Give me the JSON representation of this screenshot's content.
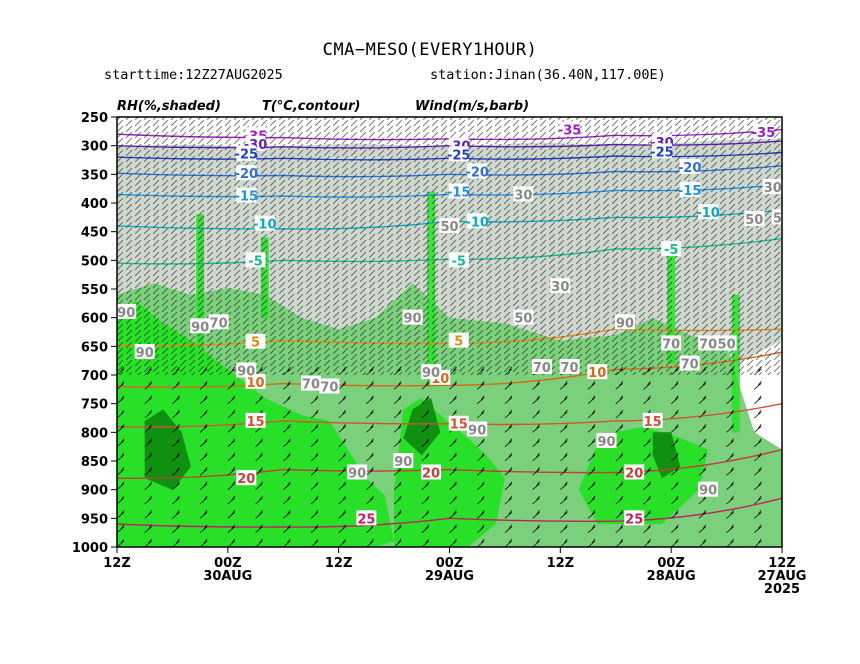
{
  "header": {
    "title": "CMA−MESO(EVERY1HOUR)",
    "starttime": "starttime:12Z27AUG2025",
    "station": "station:Jinan(36.40N,117.00E)"
  },
  "chart_data": {
    "type": "heatmap",
    "panel_labels": [
      "RH(%,shaded)",
      "T(°C,contour)",
      "Wind(m/s,barb)"
    ],
    "y_axis": {
      "ticks": [
        250,
        300,
        350,
        400,
        450,
        500,
        550,
        600,
        650,
        700,
        750,
        800,
        850,
        900,
        950,
        1000
      ],
      "range": [
        250,
        1000
      ],
      "reversed": true,
      "quantity": "pressure (hPa)"
    },
    "x_axis": {
      "direction": "reversed (time increases to the left)",
      "ticks": [
        {
          "hours": 72,
          "label1": "12Z",
          "label2": "",
          "label3": ""
        },
        {
          "hours": 60,
          "label1": "00Z",
          "label2": "30AUG",
          "label3": ""
        },
        {
          "hours": 48,
          "label1": "12Z",
          "label2": "",
          "label3": ""
        },
        {
          "hours": 36,
          "label1": "00Z",
          "label2": "29AUG",
          "label3": ""
        },
        {
          "hours": 24,
          "label1": "12Z",
          "label2": "",
          "label3": ""
        },
        {
          "hours": 12,
          "label1": "00Z",
          "label2": "28AUG",
          "label3": ""
        },
        {
          "hours": 0,
          "label1": "12Z",
          "label2": "27AUG",
          "label3": "2025"
        }
      ],
      "range": [
        72,
        0
      ]
    },
    "rh_shading": {
      "levels": [
        70,
        80,
        90
      ],
      "colors": [
        "#cfd8cf",
        "#7bd07b",
        "#28e028",
        "#109010"
      ]
    },
    "temperature_contours": [
      {
        "label": "-35",
        "color": "#9a1fc0",
        "p_at": [
          [
            72,
            280
          ],
          [
            54,
            286
          ],
          [
            36,
            288
          ],
          [
            18,
            282
          ],
          [
            0,
            272
          ]
        ],
        "labels_at": [
          [
            57,
            282
          ],
          [
            23,
            272
          ],
          [
            2,
            276
          ]
        ]
      },
      {
        "label": "-30",
        "color": "#5f1fb0",
        "p_at": [
          [
            72,
            300
          ],
          [
            54,
            302
          ],
          [
            36,
            300
          ],
          [
            18,
            298
          ],
          [
            0,
            292
          ]
        ],
        "labels_at": [
          [
            57,
            297
          ],
          [
            35,
            300
          ],
          [
            13,
            294
          ]
        ]
      },
      {
        "label": "-25",
        "color": "#2040c0",
        "p_at": [
          [
            72,
            320
          ],
          [
            54,
            322
          ],
          [
            36,
            322
          ],
          [
            18,
            318
          ],
          [
            0,
            312
          ]
        ],
        "labels_at": [
          [
            58,
            314
          ],
          [
            35,
            315
          ],
          [
            13,
            310
          ]
        ]
      },
      {
        "label": "-20",
        "color": "#2f6fd8",
        "p_at": [
          [
            72,
            348
          ],
          [
            54,
            352
          ],
          [
            36,
            350
          ],
          [
            18,
            345
          ],
          [
            0,
            335
          ]
        ],
        "labels_at": [
          [
            58,
            348
          ],
          [
            33,
            345
          ],
          [
            10,
            337
          ]
        ]
      },
      {
        "label": "-15",
        "color": "#2090e0",
        "p_at": [
          [
            72,
            385
          ],
          [
            54,
            388
          ],
          [
            36,
            385
          ],
          [
            18,
            378
          ],
          [
            0,
            368
          ]
        ],
        "labels_at": [
          [
            58,
            387
          ],
          [
            35,
            380
          ],
          [
            10,
            377
          ]
        ]
      },
      {
        "label": "-10",
        "color": "#10a8c0",
        "p_at": [
          [
            72,
            440
          ],
          [
            54,
            445
          ],
          [
            36,
            432
          ],
          [
            18,
            425
          ],
          [
            0,
            412
          ]
        ],
        "labels_at": [
          [
            56,
            436
          ],
          [
            33,
            432
          ],
          [
            8,
            416
          ]
        ]
      },
      {
        "label": "-5",
        "color": "#18b890",
        "p_at": [
          [
            72,
            505
          ],
          [
            54,
            500
          ],
          [
            36,
            498
          ],
          [
            18,
            480
          ],
          [
            0,
            462
          ]
        ],
        "labels_at": [
          [
            57,
            500
          ],
          [
            35,
            500
          ],
          [
            12,
            480
          ]
        ]
      },
      {
        "label": "5",
        "color": "#e08a18",
        "p_at": [
          [
            72,
            648
          ],
          [
            54,
            640
          ],
          [
            36,
            645
          ],
          [
            18,
            620
          ],
          [
            0,
            620
          ]
        ],
        "labels_at": [
          [
            57,
            642
          ],
          [
            35,
            640
          ]
        ]
      },
      {
        "label": "10",
        "color": "#d86818",
        "p_at": [
          [
            72,
            720
          ],
          [
            54,
            715
          ],
          [
            36,
            718
          ],
          [
            18,
            690
          ],
          [
            0,
            660
          ]
        ],
        "labels_at": [
          [
            57,
            712
          ],
          [
            37,
            705
          ],
          [
            20,
            695
          ]
        ]
      },
      {
        "label": "15",
        "color": "#d85030",
        "p_at": [
          [
            72,
            790
          ],
          [
            54,
            780
          ],
          [
            36,
            785
          ],
          [
            18,
            780
          ],
          [
            0,
            750
          ]
        ],
        "labels_at": [
          [
            57,
            780
          ],
          [
            35,
            785
          ],
          [
            14,
            780
          ]
        ]
      },
      {
        "label": "20",
        "color": "#c04038",
        "p_at": [
          [
            72,
            880
          ],
          [
            54,
            865
          ],
          [
            36,
            865
          ],
          [
            18,
            870
          ],
          [
            0,
            830
          ]
        ],
        "labels_at": [
          [
            58,
            880
          ],
          [
            38,
            870
          ],
          [
            16,
            870
          ]
        ]
      },
      {
        "label": "25",
        "color": "#c02060",
        "p_at": [
          [
            72,
            960
          ],
          [
            54,
            965
          ],
          [
            36,
            950
          ],
          [
            18,
            955
          ],
          [
            0,
            915
          ]
        ],
        "labels_at": [
          [
            45,
            950
          ],
          [
            16,
            950
          ]
        ]
      }
    ],
    "rh_contour_labels": [
      {
        "label": "30",
        "at": [
          [
            28,
            385
          ],
          [
            24,
            545
          ],
          [
            1,
            372
          ]
        ]
      },
      {
        "label": "50",
        "at": [
          [
            36,
            440
          ],
          [
            28,
            600
          ],
          [
            6,
            645
          ],
          [
            3,
            428
          ],
          [
            0,
            425
          ]
        ]
      },
      {
        "label": "70",
        "at": [
          [
            61,
            608
          ],
          [
            51,
            715
          ],
          [
            49,
            720
          ],
          [
            26,
            686
          ],
          [
            23,
            686
          ],
          [
            12,
            645
          ],
          [
            10,
            680
          ],
          [
            8,
            645
          ]
        ]
      },
      {
        "label": "90",
        "at": [
          [
            71,
            590
          ],
          [
            69,
            660
          ],
          [
            63,
            615
          ],
          [
            58,
            692
          ],
          [
            46,
            870
          ],
          [
            41,
            850
          ],
          [
            40,
            600
          ],
          [
            38,
            695
          ],
          [
            33,
            795
          ],
          [
            19,
            815
          ],
          [
            17,
            608
          ],
          [
            8,
            900
          ]
        ]
      }
    ]
  }
}
